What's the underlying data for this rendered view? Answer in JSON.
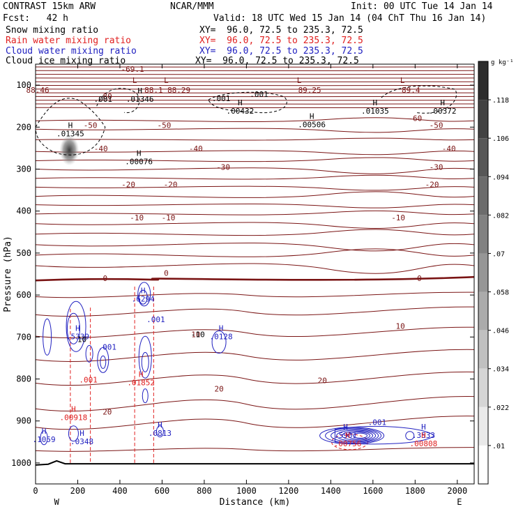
{
  "header": {
    "model": "CONTRAST 15km ARW",
    "org": "NCAR/MMM",
    "init": "Init: 00 UTC Tue 14 Jan 14",
    "fcst": "Fcst:   42 h",
    "valid": "Valid: 18 UTC Wed 15 Jan 14 (04 ChT Thu 16 Jan 14)"
  },
  "fields": [
    {
      "name": "Snow mixing ratio",
      "xy": "XY=  96.0, 72.5 to 235.3, 72.5",
      "color": "#000000"
    },
    {
      "name": "Rain water mixing ratio",
      "xy": "XY=  96.0, 72.5 to 235.3, 72.5",
      "color": "#e02020"
    },
    {
      "name": "Cloud water mixing ratio",
      "xy": "XY=  96.0, 72.5 to 235.3, 72.5",
      "color": "#2020c0"
    },
    {
      "name": "Cloud ice mixing ratio",
      "xy": "XY=  96.0, 72.5 to 235.3, 72.5",
      "color": "#000000"
    }
  ],
  "chart_data": {
    "type": "contour",
    "xlabel": "Distance (km)",
    "ylabel": "Pressure (hPa)",
    "xlim": [
      0,
      2080
    ],
    "ylim": [
      1050,
      50
    ],
    "xticks": [
      0,
      200,
      400,
      600,
      800,
      1000,
      1200,
      1400,
      1600,
      1800,
      2000
    ],
    "yticks": [
      100,
      200,
      300,
      400,
      500,
      600,
      700,
      800,
      900,
      1000
    ],
    "x_end_labels": {
      "left": "W",
      "right": "E"
    },
    "colorbar": {
      "unit": "g kg⁻¹",
      "ticks": [
        ".118",
        ".106",
        ".094",
        ".082",
        ".07",
        ".058",
        ".046",
        ".034",
        ".022",
        ".01"
      ]
    },
    "temperature_contours": {
      "color": "#7a1414",
      "labels": [
        {
          "x": 460,
          "p": 68,
          "text": "-69.1"
        },
        {
          "x": 10,
          "p": 118,
          "text": "88.46"
        },
        {
          "x": 560,
          "p": 118,
          "text": "88.1"
        },
        {
          "x": 680,
          "p": 118,
          "text": "88.29"
        },
        {
          "x": 1300,
          "p": 118,
          "text": "89.25"
        },
        {
          "x": 1780,
          "p": 118,
          "text": "89.4"
        },
        {
          "x": 330,
          "p": 133,
          "text": "-80"
        },
        {
          "x": 1800,
          "p": 185,
          "text": "-60"
        },
        {
          "x": 260,
          "p": 202,
          "text": "-50"
        },
        {
          "x": 610,
          "p": 202,
          "text": "-50"
        },
        {
          "x": 1900,
          "p": 202,
          "text": "-50"
        },
        {
          "x": 310,
          "p": 258,
          "text": "-40"
        },
        {
          "x": 760,
          "p": 258,
          "text": "-40"
        },
        {
          "x": 1960,
          "p": 258,
          "text": "-40"
        },
        {
          "x": 890,
          "p": 302,
          "text": "-30"
        },
        {
          "x": 1900,
          "p": 302,
          "text": "-30"
        },
        {
          "x": 440,
          "p": 343,
          "text": "-20"
        },
        {
          "x": 640,
          "p": 343,
          "text": "-20"
        },
        {
          "x": 1880,
          "p": 343,
          "text": "-20"
        },
        {
          "x": 480,
          "p": 422,
          "text": "-10"
        },
        {
          "x": 630,
          "p": 422,
          "text": "-10"
        },
        {
          "x": 1720,
          "p": 422,
          "text": "-10"
        },
        {
          "x": 330,
          "p": 567,
          "text": "0"
        },
        {
          "x": 620,
          "p": 554,
          "text": "0"
        },
        {
          "x": 1820,
          "p": 567,
          "text": "0"
        },
        {
          "x": 1730,
          "p": 680,
          "text": "10"
        },
        {
          "x": 760,
          "p": 700,
          "text": "10"
        },
        {
          "x": 870,
          "p": 830,
          "text": "20"
        },
        {
          "x": 1360,
          "p": 810,
          "text": "20"
        },
        {
          "x": 340,
          "p": 885,
          "text": "20"
        }
      ]
    },
    "maxima": [
      {
        "x": 165,
        "p": 222,
        "text": ".01345",
        "color": "#000000"
      },
      {
        "x": 495,
        "p": 140,
        "text": ".01346",
        "color": "#000000"
      },
      {
        "x": 490,
        "p": 288,
        "text": ".00076",
        "color": "#000000"
      },
      {
        "x": 970,
        "p": 168,
        "text": ".00432",
        "color": "#000000"
      },
      {
        "x": 1310,
        "p": 200,
        "text": ".00506",
        "color": "#000000"
      },
      {
        "x": 1610,
        "p": 168,
        "text": ".01035",
        "color": "#000000"
      },
      {
        "x": 1930,
        "p": 168,
        "text": ".00372",
        "color": "#000000"
      },
      {
        "x": 510,
        "p": 616,
        "text": ".6294",
        "color": "#2020c0"
      },
      {
        "x": 200,
        "p": 705,
        "text": ".5339",
        "color": "#2020c0"
      },
      {
        "x": 880,
        "p": 705,
        "text": ".0128",
        "color": "#2020c0"
      },
      {
        "x": 40,
        "p": 950,
        "text": ".1059",
        "color": "#2020c0"
      },
      {
        "x": 220,
        "p": 955,
        "text": ".0348",
        "color": "#2020c0"
      },
      {
        "x": 590,
        "p": 935,
        "text": ".0813",
        "color": "#2020c0"
      },
      {
        "x": 1470,
        "p": 940,
        "text": ".5901",
        "color": "#2020c0"
      },
      {
        "x": 1840,
        "p": 940,
        "text": ".3533",
        "color": "#2020c0"
      },
      {
        "x": 500,
        "p": 815,
        "text": ".01852",
        "color": "#e02020"
      },
      {
        "x": 180,
        "p": 898,
        "text": ".00918",
        "color": "#e02020"
      },
      {
        "x": 1480,
        "p": 960,
        "text": ".00756",
        "color": "#e02020"
      },
      {
        "x": 1840,
        "p": 960,
        "text": ".00808",
        "color": "#e02020"
      }
    ],
    "contour_value_labels": [
      {
        "x": 320,
        "p": 140,
        "text": ".001",
        "color": "#000000"
      },
      {
        "x": 880,
        "p": 138,
        "text": ".001",
        "color": "#000000"
      },
      {
        "x": 1060,
        "p": 128,
        "text": ".001",
        "color": "#000000"
      },
      {
        "x": 340,
        "p": 730,
        "text": ".001",
        "color": "#2020c0"
      },
      {
        "x": 570,
        "p": 665,
        "text": ".001",
        "color": "#2020c0"
      },
      {
        "x": 1620,
        "p": 910,
        "text": ".001",
        "color": "#2020c0"
      },
      {
        "x": 250,
        "p": 808,
        "text": ".001",
        "color": "#e02020"
      },
      {
        "x": 220,
        "p": 712,
        "text": "10",
        "color": "#000000"
      },
      {
        "x": 770,
        "p": 700,
        "text": "-10",
        "color": "#000000"
      }
    ],
    "low_marks": [
      {
        "x": 470,
        "p": 95
      },
      {
        "x": 620,
        "p": 95
      },
      {
        "x": 1250,
        "p": 95
      },
      {
        "x": 1740,
        "p": 95
      }
    ]
  }
}
